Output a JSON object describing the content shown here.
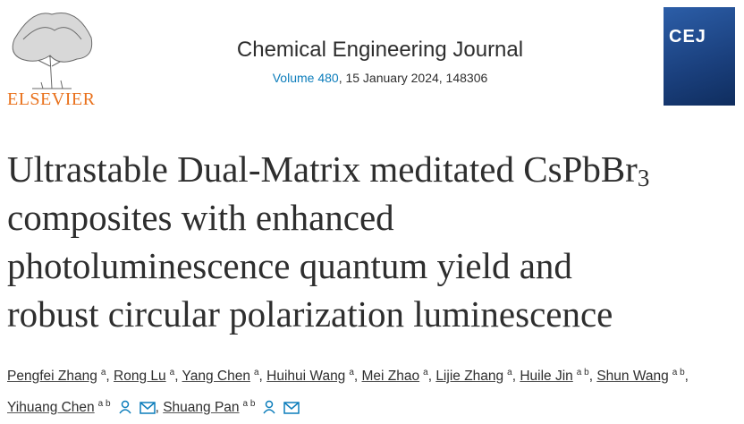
{
  "header": {
    "publisher": "ELSEVIER",
    "journal": "Chemical Engineering Journal",
    "volume": "Volume 480",
    "issue_info": ", 15 January 2024, 148306",
    "cover_text": "CEJ"
  },
  "article": {
    "title_first_line": "Ultrastable Dual-Matrix meditated CsPbBr",
    "title_subscript": "3",
    "title_lines": [
      "composites with enhanced",
      "photoluminescence quantum yield and",
      "robust circular polarization luminescence"
    ],
    "authors": [
      {
        "name": "Pengfei Zhang",
        "affiliation": "a",
        "corresponding": false
      },
      {
        "name": "Rong Lu",
        "affiliation": "a",
        "corresponding": false
      },
      {
        "name": "Yang Chen",
        "affiliation": "a",
        "corresponding": false
      },
      {
        "name": "Huihui Wang",
        "affiliation": "a",
        "corresponding": false
      },
      {
        "name": "Mei Zhao",
        "affiliation": "a",
        "corresponding": false
      },
      {
        "name": "Lijie Zhang",
        "affiliation": "a",
        "corresponding": false
      },
      {
        "name": "Huile Jin",
        "affiliation": "a b",
        "corresponding": false
      },
      {
        "name": "Shun Wang",
        "affiliation": "a b",
        "corresponding": false
      },
      {
        "name": "Yihuang Chen",
        "affiliation": "a b",
        "corresponding": true
      },
      {
        "name": "Shuang Pan",
        "affiliation": "a b",
        "corresponding": true
      }
    ]
  }
}
